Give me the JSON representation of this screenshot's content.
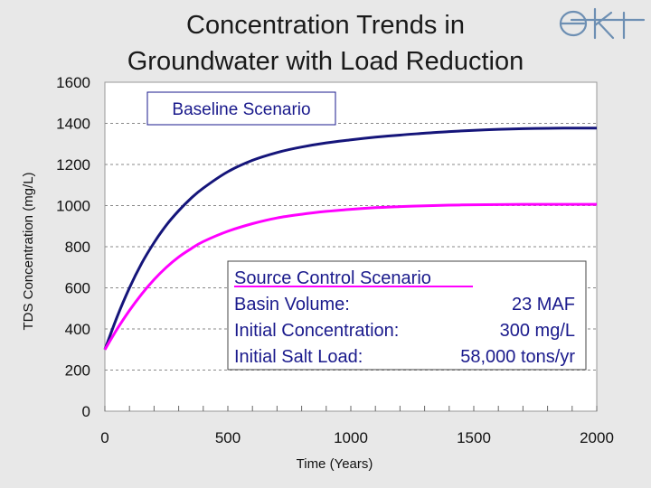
{
  "slide": {
    "title_line1": "Concentration Trends in",
    "title_line2": "Groundwater with Load Reduction",
    "logo_text": "eki"
  },
  "colors": {
    "baseline": "#15157a",
    "source_control": "#ff00ff",
    "plot_background": "#ffffff",
    "slide_background": "#e8e8e8",
    "grid": "#888888"
  },
  "annotations": {
    "baseline_label": "Baseline Scenario",
    "source_control": {
      "title": "Source Control Scenario",
      "rows": [
        {
          "label": "Basin Volume:",
          "value": "23 MAF"
        },
        {
          "label": "Initial Concentration:",
          "value": "300 mg/L"
        },
        {
          "label": "Initial Salt Load:",
          "value": "58,000 tons/yr"
        }
      ]
    }
  },
  "chart_data": {
    "type": "line",
    "title": "",
    "xlabel": "Time (Years)",
    "ylabel": "TDS Concentration (mg/L)",
    "xlim": [
      0,
      2000
    ],
    "ylim": [
      0,
      1600
    ],
    "xticks": [
      0,
      500,
      1000,
      1500,
      2000
    ],
    "yticks": [
      0,
      200,
      400,
      600,
      800,
      1000,
      1200,
      1400,
      1600
    ],
    "grid": "horizontal dashed",
    "series": [
      {
        "name": "Baseline Scenario",
        "x": [
          0,
          50,
          100,
          150,
          200,
          250,
          300,
          350,
          400,
          500,
          600,
          700,
          800,
          900,
          1000,
          1100,
          1200,
          1300,
          1400,
          1500,
          1600,
          1700,
          1800,
          1900,
          2000
        ],
        "y": [
          300,
          460,
          600,
          720,
          820,
          905,
          975,
          1035,
          1085,
          1165,
          1220,
          1258,
          1285,
          1305,
          1320,
          1333,
          1343,
          1352,
          1360,
          1366,
          1371,
          1374,
          1376,
          1377,
          1377
        ]
      },
      {
        "name": "Source Control Scenario",
        "x": [
          0,
          50,
          100,
          150,
          200,
          250,
          300,
          350,
          400,
          500,
          600,
          700,
          800,
          900,
          1000,
          1100,
          1200,
          1300,
          1400,
          1500,
          1600,
          1700,
          1800,
          1900,
          2000
        ],
        "y": [
          300,
          400,
          490,
          570,
          640,
          700,
          750,
          790,
          825,
          875,
          912,
          940,
          958,
          972,
          982,
          990,
          995,
          999,
          1002,
          1004,
          1005,
          1006,
          1006,
          1006,
          1006
        ]
      }
    ]
  }
}
